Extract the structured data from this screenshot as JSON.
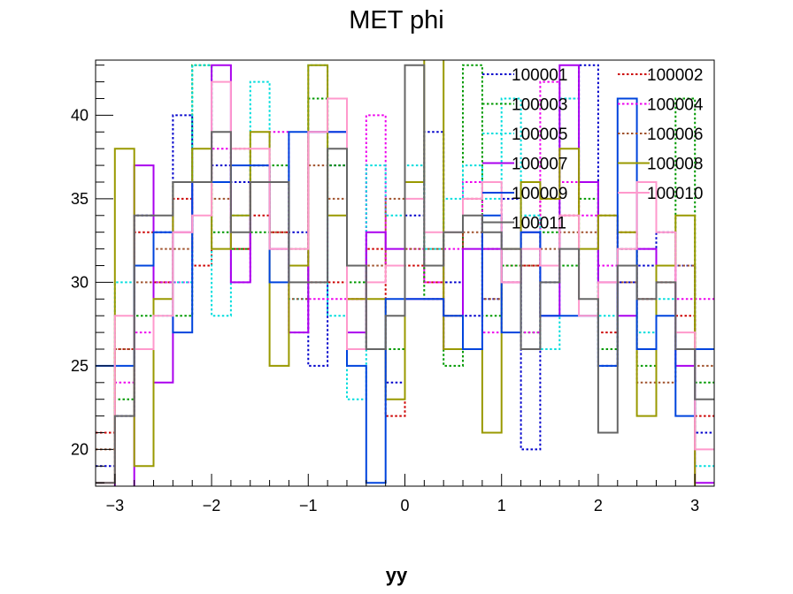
{
  "chart_data": {
    "type": "step-histogram",
    "title": "MET phi",
    "xlabel": "yy",
    "ylabel": "",
    "xlim": [
      -3.2,
      3.2
    ],
    "ylim": [
      17.8,
      43.3
    ],
    "grid": false,
    "legend_placement": "top-right, two columns",
    "x_ticks": [
      -3,
      -2,
      -1,
      0,
      1,
      2,
      3
    ],
    "x_tick_labels": [
      "−3",
      "−2",
      "−1",
      "0",
      "1",
      "2",
      "3"
    ],
    "y_ticks": [
      20,
      25,
      30,
      35,
      40
    ],
    "y_tick_labels": [
      "20",
      "25",
      "30",
      "35",
      "40"
    ],
    "bin_edges": [
      -3.2,
      -3.0,
      -2.8,
      -2.6,
      -2.4,
      -2.2,
      -2.0,
      -1.8,
      -1.6,
      -1.4,
      -1.2,
      -1.0,
      -0.8,
      -0.6,
      -0.4,
      -0.2,
      0.0,
      0.2,
      0.4,
      0.6,
      0.8,
      1.0,
      1.2,
      1.4,
      1.6,
      1.8,
      2.0,
      2.2,
      2.4,
      2.6,
      2.8,
      3.0,
      3.2
    ],
    "series": [
      {
        "name": "100001",
        "color": "#0000cc",
        "style": "dotted",
        "values": [
          19,
          22,
          34,
          33,
          40,
          36,
          37,
          36,
          37,
          36,
          33,
          25,
          37,
          31,
          26,
          24,
          34,
          39,
          30,
          28,
          29,
          35,
          20,
          30,
          41,
          43,
          25,
          30,
          31,
          33,
          31,
          21
        ]
      },
      {
        "name": "100002",
        "color": "#cc0000",
        "style": "dotted",
        "values": [
          21,
          26,
          33,
          30,
          35,
          31,
          36,
          32,
          34,
          33,
          31,
          30,
          30,
          29,
          32,
          22,
          31,
          30,
          28,
          35,
          32,
          31,
          31,
          35,
          34,
          36,
          27,
          33,
          29,
          30,
          28,
          22
        ]
      },
      {
        "name": "100003",
        "color": "#009900",
        "style": "dotted",
        "values": [
          18,
          23,
          28,
          30,
          28,
          43,
          33,
          32,
          33,
          37,
          32,
          41,
          37,
          30,
          26,
          26,
          36,
          29,
          25,
          43,
          28,
          31,
          27,
          33,
          31,
          35,
          26,
          32,
          25,
          31,
          41,
          24
        ]
      },
      {
        "name": "100004",
        "color": "#ee00ee",
        "style": "dotted",
        "values": [
          18,
          24,
          27,
          30,
          30,
          36,
          38,
          30,
          36,
          39,
          27,
          29,
          29,
          29,
          40,
          31,
          32,
          30,
          32,
          36,
          27,
          32,
          27,
          42,
          36,
          34,
          31,
          32,
          32,
          31,
          29,
          29
        ]
      },
      {
        "name": "100005",
        "color": "#00dddd",
        "style": "dotted",
        "values": [
          18,
          30,
          26,
          28,
          30,
          43,
          28,
          34,
          42,
          32,
          29,
          43,
          28,
          23,
          37,
          34,
          37,
          32,
          35,
          37,
          35,
          41,
          34,
          26,
          41,
          36,
          28,
          32,
          27,
          29,
          26,
          19
        ]
      },
      {
        "name": "100006",
        "color": "#a0522d",
        "style": "dotted",
        "values": [
          20,
          26,
          30,
          32,
          32,
          36,
          35,
          38,
          37,
          33,
          29,
          37,
          35,
          31,
          31,
          35,
          32,
          32,
          28,
          33,
          29,
          30,
          31,
          32,
          33,
          33,
          34,
          30,
          24,
          24,
          31,
          25
        ]
      },
      {
        "name": "100007",
        "color": "#aa00ee",
        "style": "solid",
        "values": [
          18,
          17,
          37,
          24,
          33,
          36,
          43,
          30,
          36,
          32,
          27,
          39,
          39,
          27,
          33,
          32,
          29,
          29,
          26,
          32,
          32,
          30,
          33,
          28,
          43,
          36,
          30,
          28,
          32,
          31,
          25,
          18
        ]
      },
      {
        "name": "100008",
        "color": "#999900",
        "style": "solid",
        "values": [
          18,
          38,
          19,
          29,
          36,
          38,
          32,
          34,
          39,
          25,
          31,
          43,
          34,
          29,
          29,
          23,
          36,
          44,
          26,
          26,
          21,
          32,
          36,
          35,
          38,
          32,
          34,
          33,
          22,
          31,
          34,
          16
        ]
      },
      {
        "name": "100009",
        "color": "#0044dd",
        "style": "solid",
        "values": [
          25,
          25,
          31,
          33,
          27,
          36,
          36,
          37,
          37,
          30,
          39,
          39,
          39,
          25,
          18,
          29,
          29,
          29,
          28,
          26,
          34,
          27,
          33,
          28,
          28,
          28,
          25,
          41,
          26,
          28,
          22,
          26
        ]
      },
      {
        "name": "100010",
        "color": "#ff99cc",
        "style": "solid",
        "values": [
          18,
          28,
          26,
          28,
          33,
          34,
          42,
          38,
          38,
          32,
          32,
          39,
          41,
          26,
          30,
          31,
          35,
          33,
          33,
          35,
          36,
          30,
          32,
          31,
          34,
          28,
          30,
          32,
          36,
          33,
          27,
          20
        ]
      },
      {
        "name": "100011",
        "color": "#666666",
        "style": "solid",
        "values": [
          18,
          22,
          34,
          34,
          36,
          36,
          39,
          33,
          36,
          36,
          30,
          30,
          38,
          31,
          26,
          28,
          43,
          31,
          33,
          34,
          33,
          32,
          26,
          30,
          32,
          29,
          21,
          31,
          29,
          30,
          26,
          23
        ]
      }
    ]
  }
}
